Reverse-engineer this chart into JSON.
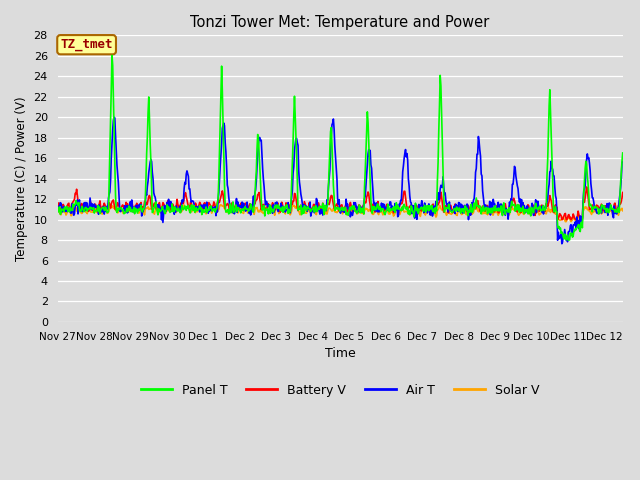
{
  "title": "Tonzi Tower Met: Temperature and Power",
  "xlabel": "Time",
  "ylabel": "Temperature (C) / Power (V)",
  "ylim": [
    0,
    28
  ],
  "yticks": [
    0,
    2,
    4,
    6,
    8,
    10,
    12,
    14,
    16,
    18,
    20,
    22,
    24,
    26,
    28
  ],
  "bg_color": "#dcdcdc",
  "grid_color": "#ffffff",
  "series": {
    "Panel T": {
      "color": "#00ff00",
      "linewidth": 1.2
    },
    "Battery V": {
      "color": "#ff0000",
      "linewidth": 1.2
    },
    "Air T": {
      "color": "#0000ff",
      "linewidth": 1.2
    },
    "Solar V": {
      "color": "#ffa500",
      "linewidth": 1.2
    }
  },
  "watermark": {
    "text": "TZ_tmet",
    "fontsize": 9,
    "color": "#990000",
    "bg": "#ffff99",
    "border_color": "#aa6600"
  },
  "xtick_labels": [
    "Nov 27",
    "Nov 28",
    "Nov 29",
    "Nov 30",
    "Dec 1",
    "Dec 2",
    "Dec 3",
    "Dec 4",
    "Dec 5",
    "Dec 6",
    "Dec 7",
    "Dec 8",
    "Dec 9",
    "Dec 10",
    "Dec 11",
    "Dec 12"
  ],
  "panel_peaks": {
    "1": 27.0,
    "2": 22.5,
    "4": 25.0,
    "5": 19.0,
    "6": 22.5,
    "7": 19.5,
    "8": 21.0,
    "10": 25.0,
    "13": 23.5,
    "14": 16.0,
    "15": 16.5
  },
  "air_peaks": {
    "0": 11.5,
    "1": 20.0,
    "2": 15.5,
    "3": 14.5,
    "4": 19.5,
    "5": 18.5,
    "6": 18.0,
    "7": 19.5,
    "8": 16.5,
    "9": 17.0,
    "10": 13.5,
    "11": 17.5,
    "12": 14.5,
    "13": 15.5,
    "14": 16.5,
    "15": 17.5
  },
  "figsize": [
    6.4,
    4.8
  ],
  "dpi": 100
}
